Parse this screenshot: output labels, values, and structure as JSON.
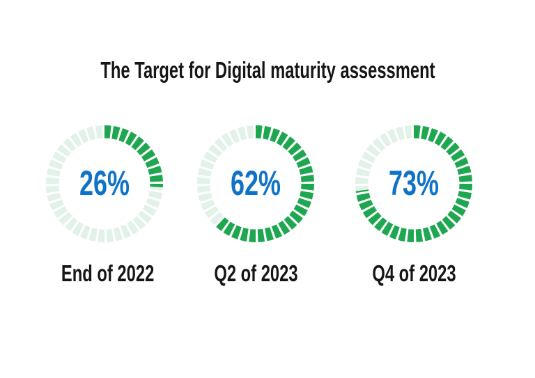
{
  "chart_data": {
    "type": "donut",
    "title": "The Target for Digital maturity assessment",
    "subtitle": "",
    "gauges": [
      {
        "label": "End of 2022",
        "value_pct": 26,
        "display": "26%"
      },
      {
        "label": "Q2 of 2023",
        "value_pct": 62,
        "display": "62%"
      },
      {
        "label": "Q4 of 2023",
        "value_pct": 73,
        "display": "73%"
      }
    ],
    "segments_per_ring": 40,
    "start_angle_deg": 0,
    "direction": "clockwise",
    "value_range": [
      0,
      100
    ],
    "legend": "none",
    "grid": false,
    "colors": {
      "active": "#1ea750",
      "inactive": "#e2f2e8",
      "percent_text": "#0e73c8",
      "label_text": "#161616",
      "background": "#ffffff"
    }
  }
}
